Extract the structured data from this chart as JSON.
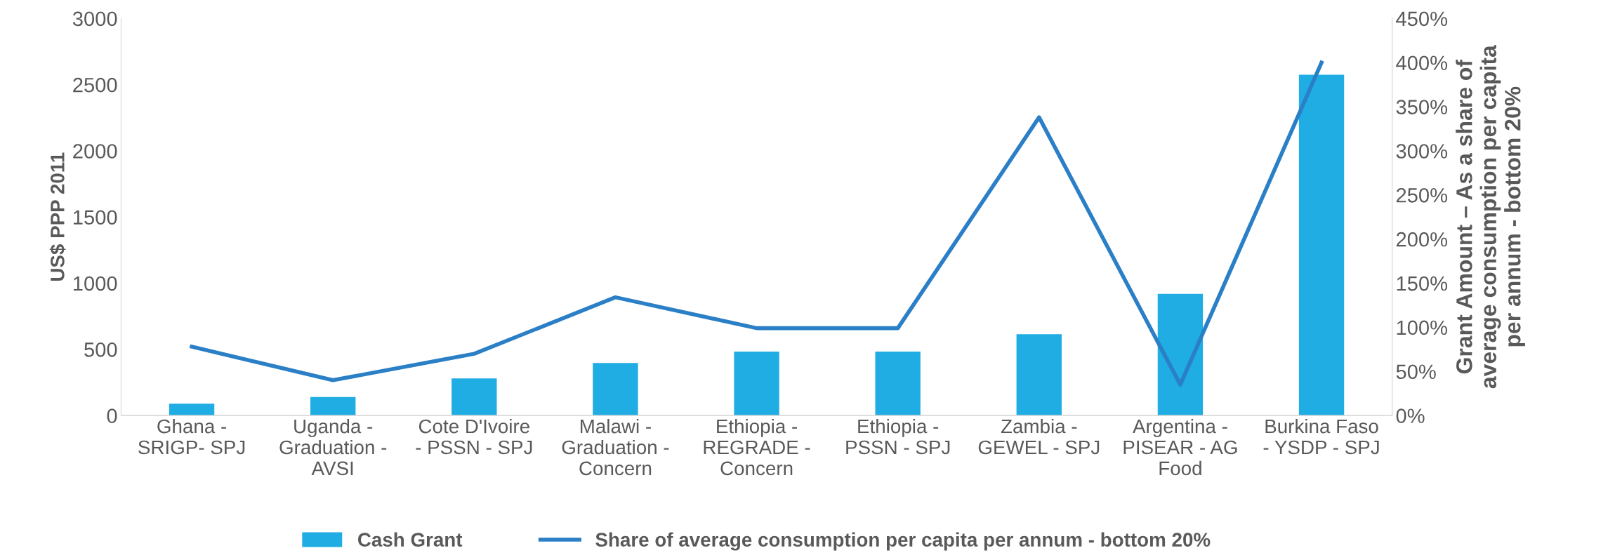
{
  "chart_data": {
    "type": "bar",
    "ylabel": "US$ PPP 2011",
    "y2label": "Grant Amount – As a share of\naverage consumption per capita\nper annum - bottom 20%",
    "categories": [
      "Ghana -\nSRIGP- SPJ",
      "Uganda -\nGraduation -\nAVSI",
      "Cote D'Ivoire\n- PSSN - SPJ",
      "Malawi -\nGraduation -\nConcern",
      "Ethiopia -\nREGRADE -\nConcern",
      "Ethiopia -\nPSSN - SPJ",
      "Zambia -\nGEWEL - SPJ",
      "Argentina -\nPISEAR - AG\nFood",
      "Burkina Faso\n- YSDP - SPJ"
    ],
    "series": [
      {
        "name": "Cash Grant",
        "color": "#1fade3",
        "values": [
          90,
          140,
          280,
          397,
          483,
          483,
          615,
          919,
          2575
        ]
      },
      {
        "name": "Share of average consumption per capita per annum - bottom 20%",
        "type": "line",
        "axis": "y2",
        "color": "#2a7fc6",
        "values": [
          78,
          40,
          70,
          134,
          99,
          99,
          338,
          35,
          400
        ]
      }
    ],
    "ylim": [
      0,
      3000
    ],
    "yticks": [
      0,
      500,
      1000,
      1500,
      2000,
      2500,
      3000
    ],
    "y2lim": [
      0,
      450
    ],
    "y2ticks": [
      {
        "value": 0,
        "label": "0%"
      },
      {
        "value": 50,
        "label": "50%"
      },
      {
        "value": 100,
        "label": "100%"
      },
      {
        "value": 150,
        "label": "150%"
      },
      {
        "value": 200,
        "label": "200%"
      },
      {
        "value": 250,
        "label": "250%"
      },
      {
        "value": 300,
        "label": "300%"
      },
      {
        "value": 350,
        "label": "350%"
      },
      {
        "value": 400,
        "label": "400%"
      },
      {
        "value": 450,
        "label": "450%"
      }
    ],
    "grid": false,
    "legend": "bottom",
    "marker": "none",
    "line_style": "solid"
  }
}
